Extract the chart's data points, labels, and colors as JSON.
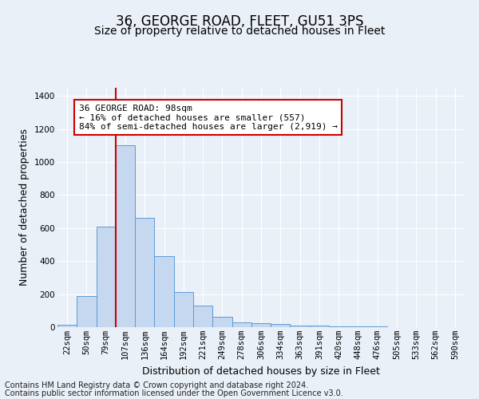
{
  "title": "36, GEORGE ROAD, FLEET, GU51 3PS",
  "subtitle": "Size of property relative to detached houses in Fleet",
  "xlabel": "Distribution of detached houses by size in Fleet",
  "ylabel": "Number of detached properties",
  "categories": [
    "22sqm",
    "50sqm",
    "79sqm",
    "107sqm",
    "136sqm",
    "164sqm",
    "192sqm",
    "221sqm",
    "249sqm",
    "278sqm",
    "306sqm",
    "334sqm",
    "363sqm",
    "391sqm",
    "420sqm",
    "448sqm",
    "476sqm",
    "505sqm",
    "533sqm",
    "562sqm",
    "590sqm"
  ],
  "values": [
    15,
    190,
    610,
    1100,
    660,
    430,
    215,
    130,
    65,
    28,
    22,
    18,
    10,
    8,
    5,
    4,
    3,
    2,
    1,
    1,
    1
  ],
  "bar_color": "#c5d8f0",
  "bar_edge_color": "#5b9bd5",
  "vline_x_index": 3,
  "vline_color": "#cc0000",
  "annotation_title": "36 GEORGE ROAD: 98sqm",
  "annotation_line2": "← 16% of detached houses are smaller (557)",
  "annotation_line3": "84% of semi-detached houses are larger (2,919) →",
  "annotation_box_color": "#ffffff",
  "annotation_box_edge_color": "#cc0000",
  "ylim": [
    0,
    1450
  ],
  "yticks": [
    0,
    200,
    400,
    600,
    800,
    1000,
    1200,
    1400
  ],
  "footnote_line1": "Contains HM Land Registry data © Crown copyright and database right 2024.",
  "footnote_line2": "Contains public sector information licensed under the Open Government Licence v3.0.",
  "bg_color": "#eaf0f8",
  "plot_bg_color": "#eaf0f8",
  "grid_color": "#ffffff",
  "title_fontsize": 12,
  "subtitle_fontsize": 10,
  "axis_label_fontsize": 9,
  "tick_fontsize": 7.5,
  "annotation_fontsize": 8,
  "footnote_fontsize": 7
}
